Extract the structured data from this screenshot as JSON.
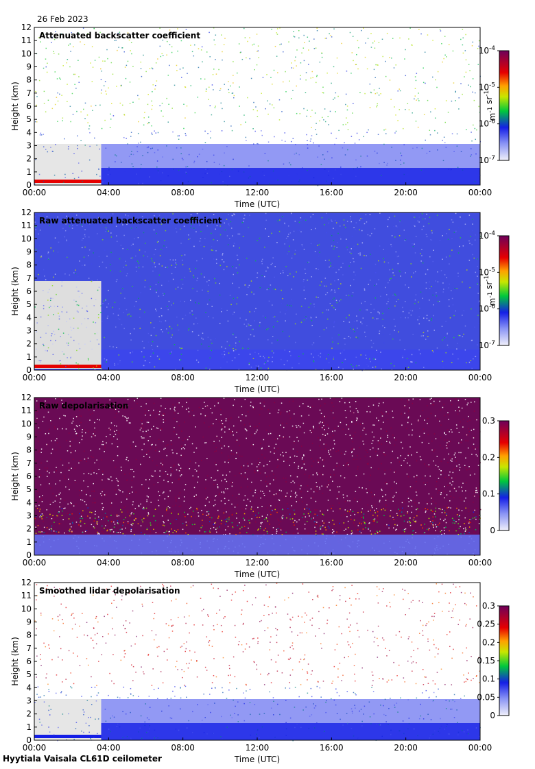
{
  "date": "26 Feb 2023",
  "footer": "Hyytiala Vaisala CL61D ceilometer",
  "chart_data": [
    {
      "type": "heatmap",
      "title": "Attenuated backscatter coefficient",
      "xlabel": "Time (UTC)",
      "ylabel": "Height (km)",
      "x_ticks": [
        "00:00",
        "04:00",
        "08:00",
        "12:00",
        "16:00",
        "20:00",
        "00:00"
      ],
      "y_ticks": [
        "0",
        "1",
        "2",
        "3",
        "4",
        "5",
        "6",
        "7",
        "8",
        "9",
        "10",
        "11",
        "12"
      ],
      "ylim": [
        0,
        12
      ],
      "colorbar": {
        "scale": "log",
        "range": [
          1e-07,
          0.0001
        ],
        "label": "m^-1 sr^-1",
        "ticks": [
          {
            "base": "10",
            "exp": "-7",
            "value": -7
          },
          {
            "base": "10",
            "exp": "-6",
            "value": -6
          },
          {
            "base": "10",
            "exp": "-5",
            "value": -5
          },
          {
            "base": "10",
            "exp": "-4",
            "value": -4
          }
        ]
      },
      "colormap": "white-blue-green-yellow-red-purple"
    },
    {
      "type": "heatmap",
      "title": "Raw attenuated backscatter coefficient",
      "xlabel": "Time (UTC)",
      "ylabel": "Height (km)",
      "x_ticks": [
        "00:00",
        "04:00",
        "08:00",
        "12:00",
        "16:00",
        "20:00",
        "00:00"
      ],
      "y_ticks": [
        "0",
        "1",
        "2",
        "3",
        "4",
        "5",
        "6",
        "7",
        "8",
        "9",
        "10",
        "11",
        "12"
      ],
      "ylim": [
        0,
        12
      ],
      "colorbar": {
        "scale": "log",
        "range": [
          1e-07,
          0.0001
        ],
        "label": "m^-1 sr^-1",
        "ticks": [
          {
            "base": "10",
            "exp": "-7",
            "value": -7
          },
          {
            "base": "10",
            "exp": "-6",
            "value": -6
          },
          {
            "base": "10",
            "exp": "-5",
            "value": -5
          },
          {
            "base": "10",
            "exp": "-4",
            "value": -4
          }
        ]
      },
      "colormap": "white-blue-green-yellow-red-purple"
    },
    {
      "type": "heatmap",
      "title": "Raw depolarisation",
      "xlabel": "Time (UTC)",
      "ylabel": "Height (km)",
      "x_ticks": [
        "00:00",
        "04:00",
        "08:00",
        "12:00",
        "16:00",
        "20:00",
        "00:00"
      ],
      "y_ticks": [
        "0",
        "1",
        "2",
        "3",
        "4",
        "5",
        "6",
        "7",
        "8",
        "9",
        "10",
        "11",
        "12"
      ],
      "ylim": [
        0,
        12
      ],
      "colorbar": {
        "scale": "linear",
        "range": [
          0,
          0.3
        ],
        "label": "",
        "ticks": [
          {
            "text": "0",
            "value": 0
          },
          {
            "text": "0.1",
            "value": 0.1
          },
          {
            "text": "0.2",
            "value": 0.2
          },
          {
            "text": "0.3",
            "value": 0.3
          }
        ]
      },
      "colormap": "white-blue-green-yellow-red-purple"
    },
    {
      "type": "heatmap",
      "title": "Smoothed lidar depolarisation",
      "xlabel": "Time (UTC)",
      "ylabel": "Height (km)",
      "x_ticks": [
        "00:00",
        "04:00",
        "08:00",
        "12:00",
        "16:00",
        "20:00",
        "00:00"
      ],
      "y_ticks": [
        "0",
        "1",
        "2",
        "3",
        "4",
        "5",
        "6",
        "7",
        "8",
        "9",
        "10",
        "11",
        "12"
      ],
      "ylim": [
        0,
        12
      ],
      "colorbar": {
        "scale": "linear",
        "range": [
          0,
          0.3
        ],
        "label": "",
        "ticks": [
          {
            "text": "0",
            "value": 0
          },
          {
            "text": "0.05",
            "value": 0.05
          },
          {
            "text": "0.1",
            "value": 0.1
          },
          {
            "text": "0.15",
            "value": 0.15
          },
          {
            "text": "0.2",
            "value": 0.2
          },
          {
            "text": "0.25",
            "value": 0.25
          },
          {
            "text": "0.3",
            "value": 0.3
          }
        ]
      },
      "colormap": "white-blue-green-yellow-red-purple"
    }
  ]
}
